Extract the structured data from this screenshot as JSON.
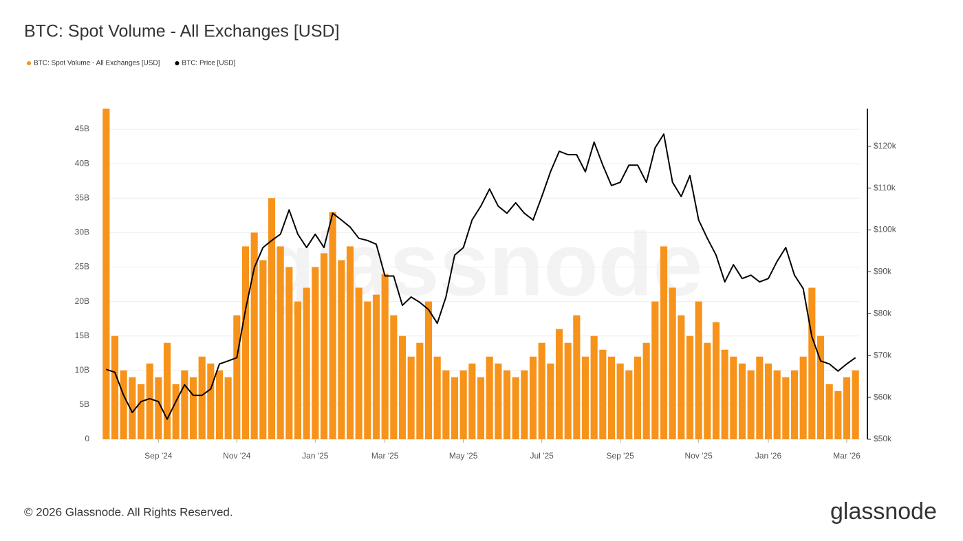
{
  "chart_data": {
    "type": "bar-line",
    "title": "BTC: Spot Volume - All Exchanges [USD]",
    "watermark": "glassnode",
    "footer": "© 2026 Glassnode. All Rights Reserved.",
    "logo": "glassnode",
    "legend": "top-left",
    "grid": true,
    "categories": [
      null,
      null,
      null,
      null,
      null,
      null,
      "Sep '24",
      null,
      null,
      null,
      null,
      null,
      null,
      null,
      null,
      "Nov '24",
      null,
      null,
      null,
      null,
      null,
      null,
      null,
      null,
      "Jan '25",
      null,
      null,
      null,
      null,
      null,
      null,
      null,
      "Mar '25",
      null,
      null,
      null,
      null,
      null,
      null,
      null,
      null,
      "May '25",
      null,
      null,
      null,
      null,
      null,
      null,
      null,
      null,
      "Jul '25",
      null,
      null,
      null,
      null,
      null,
      null,
      null,
      null,
      "Sep '25",
      null,
      null,
      null,
      null,
      null,
      null,
      null,
      null,
      "Nov '25",
      null,
      null,
      null,
      null,
      null,
      null,
      null,
      "Jan '26",
      null,
      null,
      null,
      null,
      null,
      null,
      null,
      null,
      "Mar '26",
      null
    ],
    "series": [
      {
        "name": "BTC: Spot Volume - All Exchanges [USD]",
        "color": "#f7931a",
        "axis": "y",
        "values": [
          48000000000.0,
          15000000000.0,
          10000000000.0,
          9000000000.0,
          8000000000.0,
          11000000000.0,
          9000000000.0,
          14000000000.0,
          8000000000.0,
          10000000000.0,
          9000000000.0,
          12000000000.0,
          11000000000.0,
          10000000000.0,
          9000000000.0,
          18000000000.0,
          28000000000.0,
          30000000000.0,
          26000000000.0,
          35000000000.0,
          28000000000.0,
          25000000000.0,
          20000000000.0,
          22000000000.0,
          25000000000.0,
          27000000000.0,
          33000000000.0,
          26000000000.0,
          28000000000.0,
          22000000000.0,
          20000000000.0,
          21000000000.0,
          24000000000.0,
          18000000000.0,
          15000000000.0,
          12000000000.0,
          14000000000.0,
          20000000000.0,
          12000000000.0,
          10000000000.0,
          9000000000.0,
          10000000000.0,
          11000000000.0,
          9000000000.0,
          12000000000.0,
          11000000000.0,
          10000000000.0,
          9000000000.0,
          10000000000.0,
          12000000000.0,
          14000000000.0,
          11000000000.0,
          16000000000.0,
          14000000000.0,
          18000000000.0,
          12000000000.0,
          15000000000.0,
          13000000000.0,
          12000000000.0,
          11000000000.0,
          10000000000.0,
          12000000000.0,
          14000000000.0,
          20000000000.0,
          28000000000.0,
          22000000000.0,
          18000000000.0,
          15000000000.0,
          20000000000.0,
          14000000000.0,
          17000000000.0,
          13000000000.0,
          12000000000.0,
          11000000000.0,
          10000000000.0,
          12000000000.0,
          11000000000.0,
          10000000000.0,
          9000000000.0,
          10000000000.0,
          12000000000.0,
          22000000000.0,
          15000000000.0,
          8000000000.0,
          7000000000.0,
          9000000000.0,
          10000000000.0
        ]
      },
      {
        "name": "BTC: Price [USD]",
        "color": "#000000",
        "axis": "y2",
        "values": [
          66700,
          66000,
          60500,
          56400,
          59000,
          59700,
          59000,
          54800,
          59000,
          63000,
          60500,
          60500,
          62000,
          68000,
          68700,
          69500,
          81000,
          91000,
          95800,
          97500,
          99000,
          104800,
          99000,
          95800,
          99000,
          95800,
          104000,
          102400,
          100700,
          98000,
          97500,
          96600,
          89000,
          89000,
          82000,
          84000,
          82700,
          81000,
          77700,
          84000,
          94000,
          95800,
          102400,
          105700,
          109800,
          105700,
          104000,
          106500,
          104000,
          102400,
          108000,
          113900,
          118800,
          118000,
          118000,
          113900,
          121000,
          115500,
          110600,
          111400,
          115500,
          115500,
          111400,
          119600,
          122900,
          111400,
          108000,
          113000,
          102400,
          98000,
          94000,
          87600,
          91700,
          88400,
          89200,
          87600,
          88400,
          92500,
          95800,
          89200,
          86000,
          74500,
          68700,
          68000,
          66300,
          68000,
          69500
        ]
      }
    ],
    "ylim": [
      0,
      48000000000.0
    ],
    "yticks": [
      0,
      {
        "value": 5000000000.0,
        "label": "5B"
      },
      {
        "value": 10000000000.0,
        "label": "10B"
      },
      {
        "value": 15000000000.0,
        "label": "15B"
      },
      {
        "value": 20000000000.0,
        "label": "20B"
      },
      {
        "value": 25000000000.0,
        "label": "25B"
      },
      {
        "value": 30000000000.0,
        "label": "30B"
      },
      {
        "value": 35000000000.0,
        "label": "35B"
      },
      {
        "value": 40000000000.0,
        "label": "40B"
      },
      {
        "value": 45000000000.0,
        "label": "45B"
      }
    ],
    "y2lim": [
      50000,
      129000
    ],
    "y2ticks": [
      {
        "value": 50000,
        "label": "$50k"
      },
      {
        "value": 60000,
        "label": "$60k"
      },
      {
        "value": 70000,
        "label": "$70k"
      },
      {
        "value": 80000,
        "label": "$80k"
      },
      {
        "value": 90000,
        "label": "$90k"
      },
      {
        "value": 100000,
        "label": "$100k"
      },
      {
        "value": 110000,
        "label": "$110k"
      },
      {
        "value": 120000,
        "label": "$120k"
      }
    ]
  }
}
